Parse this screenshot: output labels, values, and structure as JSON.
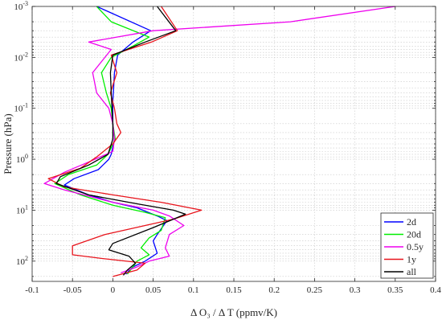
{
  "chart_data": {
    "type": "line",
    "title": "",
    "xlabel": "Δ O₃ / Δ T (ppmv/K)",
    "ylabel": "Pressure (hPa)",
    "xlim": [
      -0.1,
      0.4
    ],
    "ylim_hPa": [
      0.001,
      250
    ],
    "y_scale": "log",
    "y_reversed": true,
    "grid": true,
    "legend_position": "bottom-right",
    "xticks": [
      "-0.1",
      "-0.05",
      "0",
      "0.05",
      "0.1",
      "0.15",
      "0.2",
      "0.25",
      "0.3",
      "0.35",
      "0.4"
    ],
    "yticks": [
      {
        "base": "10",
        "exp": "-3",
        "value": 0.001
      },
      {
        "base": "10",
        "exp": "-2",
        "value": 0.01
      },
      {
        "base": "10",
        "exp": "-1",
        "value": 0.1
      },
      {
        "base": "10",
        "exp": "0",
        "value": 1
      },
      {
        "base": "10",
        "exp": "1",
        "value": 10
      },
      {
        "base": "10",
        "exp": "2",
        "value": 100
      }
    ],
    "series": [
      {
        "name": "2d",
        "color": "#0000ff",
        "points": [
          [
            -0.02,
            0.001
          ],
          [
            0.047,
            0.003
          ],
          [
            0.025,
            0.005
          ],
          [
            0.006,
            0.009
          ],
          [
            0.002,
            0.02
          ],
          [
            0.001,
            0.04
          ],
          [
            0.0,
            0.07
          ],
          [
            0.0,
            0.12
          ],
          [
            0.0,
            0.2
          ],
          [
            0.002,
            0.4
          ],
          [
            -0.002,
            0.8
          ],
          [
            -0.005,
            1.0
          ],
          [
            -0.018,
            1.6
          ],
          [
            -0.048,
            2.4
          ],
          [
            -0.06,
            3.2
          ],
          [
            -0.03,
            5.0
          ],
          [
            0.0,
            7.0
          ],
          [
            0.03,
            9.0
          ],
          [
            0.055,
            13
          ],
          [
            0.067,
            16
          ],
          [
            0.055,
            30
          ],
          [
            0.05,
            40
          ],
          [
            0.055,
            70
          ],
          [
            0.04,
            100
          ],
          [
            0.025,
            130
          ],
          [
            0.016,
            180
          ]
        ]
      },
      {
        "name": "20d",
        "color": "#00ee00",
        "points": [
          [
            -0.02,
            0.001
          ],
          [
            -0.002,
            0.002
          ],
          [
            0.045,
            0.004
          ],
          [
            0.025,
            0.006
          ],
          [
            -0.002,
            0.01
          ],
          [
            -0.014,
            0.02
          ],
          [
            -0.008,
            0.05
          ],
          [
            -0.002,
            0.1
          ],
          [
            0.0,
            0.2
          ],
          [
            0.003,
            0.4
          ],
          [
            -0.006,
            0.8
          ],
          [
            -0.02,
            1.3
          ],
          [
            -0.055,
            2.0
          ],
          [
            -0.072,
            3.0
          ],
          [
            -0.04,
            5.0
          ],
          [
            0.0,
            8.0
          ],
          [
            0.04,
            11
          ],
          [
            0.065,
            14
          ],
          [
            0.06,
            25
          ],
          [
            0.045,
            35
          ],
          [
            0.035,
            55
          ],
          [
            0.045,
            75
          ],
          [
            0.03,
            100
          ],
          [
            0.025,
            130
          ],
          [
            0.018,
            180
          ]
        ]
      },
      {
        "name": "0.5y",
        "color": "#ee00ee",
        "points": [
          [
            0.35,
            0.001
          ],
          [
            0.22,
            0.002
          ],
          [
            0.05,
            0.003
          ],
          [
            -0.03,
            0.005
          ],
          [
            -0.002,
            0.007
          ],
          [
            -0.025,
            0.02
          ],
          [
            -0.02,
            0.05
          ],
          [
            -0.005,
            0.1
          ],
          [
            0.0,
            0.2
          ],
          [
            0.002,
            0.4
          ],
          [
            0.0,
            0.7
          ],
          [
            -0.028,
            1.1
          ],
          [
            -0.06,
            1.8
          ],
          [
            -0.085,
            3.0
          ],
          [
            -0.06,
            4.0
          ],
          [
            0.0,
            7.0
          ],
          [
            0.05,
            10
          ],
          [
            0.07,
            13
          ],
          [
            0.088,
            20
          ],
          [
            0.07,
            30
          ],
          [
            0.065,
            55
          ],
          [
            0.07,
            80
          ],
          [
            0.045,
            100
          ],
          [
            0.03,
            130
          ],
          [
            0.01,
            170
          ]
        ]
      },
      {
        "name": "1y",
        "color": "#e8141c",
        "points": [
          [
            0.06,
            0.001
          ],
          [
            0.08,
            0.003
          ],
          [
            0.048,
            0.005
          ],
          [
            -0.002,
            0.009
          ],
          [
            0.005,
            0.02
          ],
          [
            -0.003,
            0.05
          ],
          [
            0.002,
            0.1
          ],
          [
            0.005,
            0.2
          ],
          [
            0.01,
            0.3
          ],
          [
            0.0,
            0.5
          ],
          [
            -0.02,
            0.9
          ],
          [
            -0.04,
            1.5
          ],
          [
            -0.08,
            2.4
          ],
          [
            -0.06,
            3.5
          ],
          [
            0.0,
            5.0
          ],
          [
            0.06,
            7.0
          ],
          [
            0.11,
            10
          ],
          [
            0.075,
            15
          ],
          [
            -0.01,
            30
          ],
          [
            -0.05,
            50
          ],
          [
            -0.05,
            75
          ],
          [
            -0.01,
            90
          ],
          [
            0.04,
            110
          ],
          [
            0.03,
            150
          ],
          [
            0.0,
            200
          ]
        ]
      },
      {
        "name": "all",
        "color": "#000000",
        "points": [
          [
            0.055,
            0.001
          ],
          [
            0.078,
            0.003
          ],
          [
            0.04,
            0.005
          ],
          [
            0.0,
            0.009
          ],
          [
            -0.003,
            0.02
          ],
          [
            -0.002,
            0.05
          ],
          [
            -0.001,
            0.1
          ],
          [
            0.0,
            0.2
          ],
          [
            0.0,
            0.4
          ],
          [
            -0.006,
            0.8
          ],
          [
            -0.03,
            1.3
          ],
          [
            -0.065,
            2.2
          ],
          [
            -0.07,
            3.0
          ],
          [
            -0.03,
            5.0
          ],
          [
            0.03,
            7.5
          ],
          [
            0.075,
            10
          ],
          [
            0.09,
            12
          ],
          [
            0.05,
            22
          ],
          [
            0.0,
            45
          ],
          [
            -0.005,
            60
          ],
          [
            0.02,
            80
          ],
          [
            0.028,
            110
          ],
          [
            0.018,
            150
          ],
          [
            0.013,
            190
          ]
        ]
      }
    ]
  }
}
